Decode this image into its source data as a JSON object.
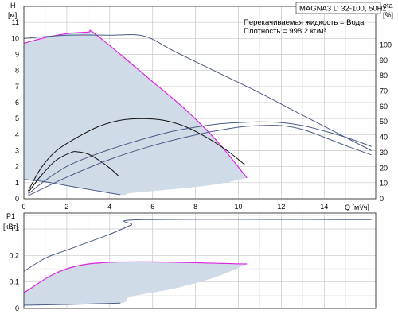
{
  "header": {
    "model_label": "MAGNA3 D 32-100, 50Hz",
    "liquid_label": "Перекачиваемая жидкость = Вода",
    "density_label": "Плотность = 998.2 кг/м³"
  },
  "colors": {
    "area_fill": "#cfdbe7",
    "max_curve": "#e022e0",
    "blue_curve": "#4a5a86",
    "black_curve": "#111111",
    "grid": "#c8c8c8"
  },
  "chart_data": [
    {
      "type": "line",
      "name": "H-Q",
      "xlabel": "Q [м³/ч]",
      "xlim": [
        0,
        16.4
      ],
      "xticks": [
        0,
        2,
        4,
        6,
        8,
        10,
        12,
        14
      ],
      "ylabel_left": "H",
      "ylabel_left_unit": "[м]",
      "ylim_left": [
        0,
        12
      ],
      "yticks_left": [
        0,
        1,
        2,
        3,
        4,
        5,
        6,
        7,
        8,
        9,
        10,
        11
      ],
      "ylabel_right": "eta",
      "ylabel_right_unit": "[%]",
      "ylim_right": [
        0,
        125
      ],
      "yticks_right": [
        0,
        10,
        20,
        30,
        40,
        50,
        60,
        70,
        80,
        90,
        100
      ],
      "grid": true,
      "operating_area": {
        "top": [
          [
            0,
            9.7
          ],
          [
            1,
            10.05
          ],
          [
            2,
            10.3
          ],
          [
            3,
            10.4
          ],
          [
            3.2,
            10.4
          ],
          [
            4.5,
            9.0
          ],
          [
            6,
            7.3
          ],
          [
            7.5,
            5.6
          ],
          [
            9,
            3.6
          ],
          [
            10.4,
            1.3
          ]
        ],
        "bottom": [
          [
            10.4,
            1.3
          ],
          [
            9,
            0.9
          ],
          [
            7,
            0.6
          ],
          [
            5,
            0.35
          ],
          [
            4.5,
            0.25
          ],
          [
            2.5,
            0.7
          ],
          [
            1,
            1.05
          ],
          [
            0,
            1.2
          ]
        ]
      },
      "series": [
        {
          "role": "max_curve",
          "unit": "m",
          "points": [
            [
              0,
              9.7
            ],
            [
              1,
              10.05
            ],
            [
              2,
              10.3
            ],
            [
              3,
              10.4
            ],
            [
              3.2,
              10.4
            ],
            [
              4.5,
              9.0
            ],
            [
              6,
              7.3
            ],
            [
              7.5,
              5.6
            ],
            [
              9,
              3.6
            ],
            [
              10.4,
              1.3
            ]
          ]
        },
        {
          "role": "min_curve",
          "unit": "m",
          "points": [
            [
              0,
              1.2
            ],
            [
              1,
              1.05
            ],
            [
              2.5,
              0.7
            ],
            [
              4.5,
              0.25
            ]
          ]
        },
        {
          "role": "pump_curve",
          "unit": "m",
          "points": [
            [
              0,
              10.0
            ],
            [
              2,
              10.2
            ],
            [
              4,
              10.2
            ],
            [
              5.6,
              10.15
            ],
            [
              7,
              9.2
            ],
            [
              9,
              7.9
            ],
            [
              11,
              6.6
            ],
            [
              13,
              5.2
            ],
            [
              16.2,
              3.0
            ]
          ]
        },
        {
          "role": "eta_curve",
          "unit": "%",
          "points": [
            [
              0.2,
              5
            ],
            [
              0.8,
              20
            ],
            [
              1.5,
              31
            ],
            [
              2.5,
              40
            ],
            [
              3.5,
              47
            ],
            [
              4.5,
              51
            ],
            [
              5.5,
              52
            ],
            [
              6.5,
              51
            ],
            [
              7.5,
              47
            ],
            [
              8.5,
              40
            ],
            [
              9.5,
              31
            ],
            [
              10.3,
              22
            ]
          ]
        },
        {
          "role": "eta_curve",
          "unit": "%",
          "points": [
            [
              0.2,
              4
            ],
            [
              0.8,
              15
            ],
            [
              1.5,
              25
            ],
            [
              2.2,
              30
            ],
            [
              2.5,
              30.5
            ],
            [
              3.0,
              29
            ],
            [
              3.5,
              25
            ],
            [
              4.0,
              20
            ],
            [
              4.4,
              15
            ]
          ]
        },
        {
          "role": "eta_curve",
          "unit": "%",
          "points": [
            [
              0.2,
              3
            ],
            [
              1,
              12
            ],
            [
              2,
              21
            ],
            [
              3,
              27
            ],
            [
              4,
              32
            ],
            [
              5,
              36.5
            ],
            [
              6,
              40.5
            ],
            [
              7,
              44
            ],
            [
              8,
              46.5
            ],
            [
              9,
              48.5
            ],
            [
              10,
              49.5
            ],
            [
              11,
              50
            ],
            [
              12,
              49.5
            ],
            [
              13,
              47.5
            ],
            [
              14,
              44
            ],
            [
              15,
              40
            ],
            [
              16.2,
              34
            ]
          ]
        },
        {
          "role": "eta_curve",
          "unit": "%",
          "points": [
            [
              0.2,
              2
            ],
            [
              2,
              14
            ],
            [
              4,
              25.5
            ],
            [
              6,
              34.5
            ],
            [
              8,
              41.5
            ],
            [
              10,
              46.5
            ],
            [
              11,
              47.5
            ],
            [
              12,
              47.5
            ],
            [
              13,
              45
            ],
            [
              14,
              40
            ],
            [
              15,
              34.5
            ],
            [
              16.2,
              28.5
            ]
          ]
        }
      ]
    },
    {
      "type": "line",
      "name": "P1-Q",
      "ylabel": "P1",
      "ylabel_unit": "[кВт]",
      "xlim": [
        0,
        16.4
      ],
      "ylim": [
        0,
        0.36
      ],
      "yticks": [
        0,
        0.1,
        0.2,
        0.3
      ],
      "ytick_labels": [
        "0",
        "0,1",
        "0,2",
        "0,3"
      ],
      "grid": true,
      "operating_area": {
        "top": [
          [
            0,
            0.06
          ],
          [
            3,
            0.168
          ],
          [
            10.4,
            0.168
          ]
        ],
        "bottom": [
          [
            10.4,
            0.168
          ],
          [
            9,
            0.12
          ],
          [
            7,
            0.075
          ],
          [
            5,
            0.045
          ],
          [
            4.5,
            0.02
          ],
          [
            2,
            0.015
          ],
          [
            0,
            0.012
          ]
        ]
      },
      "series": [
        {
          "role": "pump_curve",
          "unit": "kW",
          "points": [
            [
              0,
              0.14
            ],
            [
              1,
              0.19
            ],
            [
              2,
              0.22
            ],
            [
              3,
              0.25
            ],
            [
              4,
              0.28
            ],
            [
              5,
              0.315
            ],
            [
              5.6,
              0.335
            ],
            [
              16.2,
              0.335
            ]
          ]
        },
        {
          "role": "max_curve",
          "unit": "kW",
          "points": [
            [
              0,
              0.06
            ],
            [
              3,
              0.168
            ],
            [
              10.4,
              0.168
            ]
          ]
        },
        {
          "role": "min_curve",
          "unit": "kW",
          "points": [
            [
              0,
              0.012
            ],
            [
              2,
              0.015
            ],
            [
              4.5,
              0.02
            ]
          ]
        }
      ]
    }
  ]
}
